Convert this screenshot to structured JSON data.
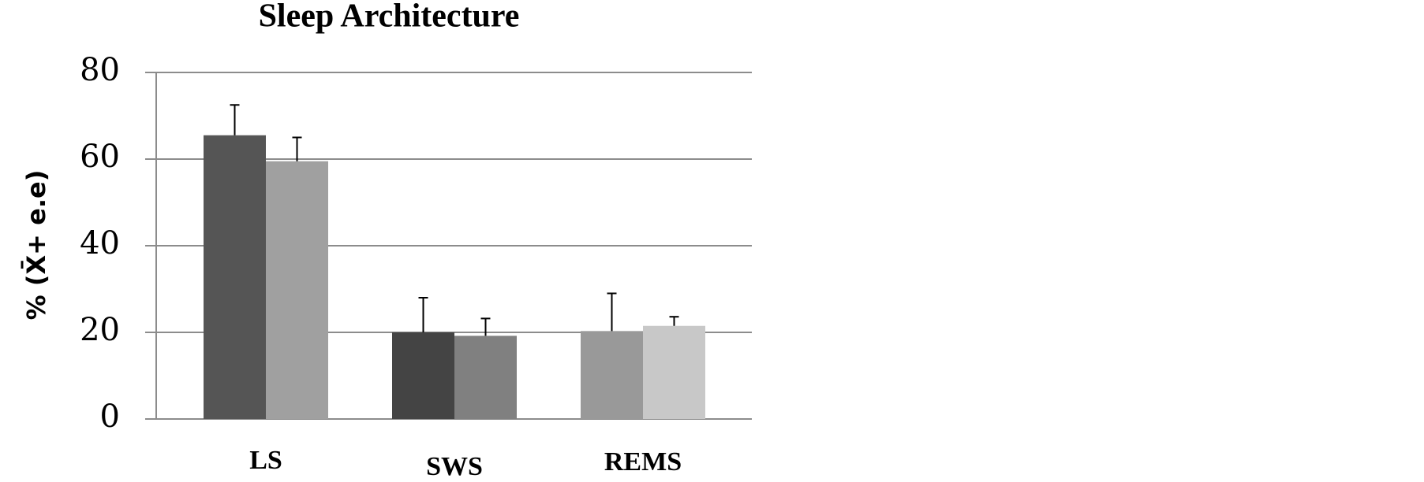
{
  "chart_data": {
    "type": "bar",
    "title": "Sleep Architecture",
    "y_label": "% (X̄+ e.e)",
    "categories": [
      "LS",
      "SWS",
      "REMS"
    ],
    "series": [
      {
        "colors": [
          "#555555",
          "#444444",
          "#999999"
        ],
        "values": [
          65.5,
          20,
          20.3
        ],
        "errors": [
          7,
          8,
          8.7
        ]
      },
      {
        "colors": [
          "#a0a0a0",
          "#808080",
          "#c8c8c8"
        ],
        "values": [
          59.5,
          19.2,
          21.5
        ],
        "errors": [
          5.5,
          4,
          2.1
        ]
      }
    ],
    "ylim": [
      0,
      80
    ],
    "yticks": [
      0,
      20,
      40,
      60,
      80
    ],
    "grid": true
  }
}
